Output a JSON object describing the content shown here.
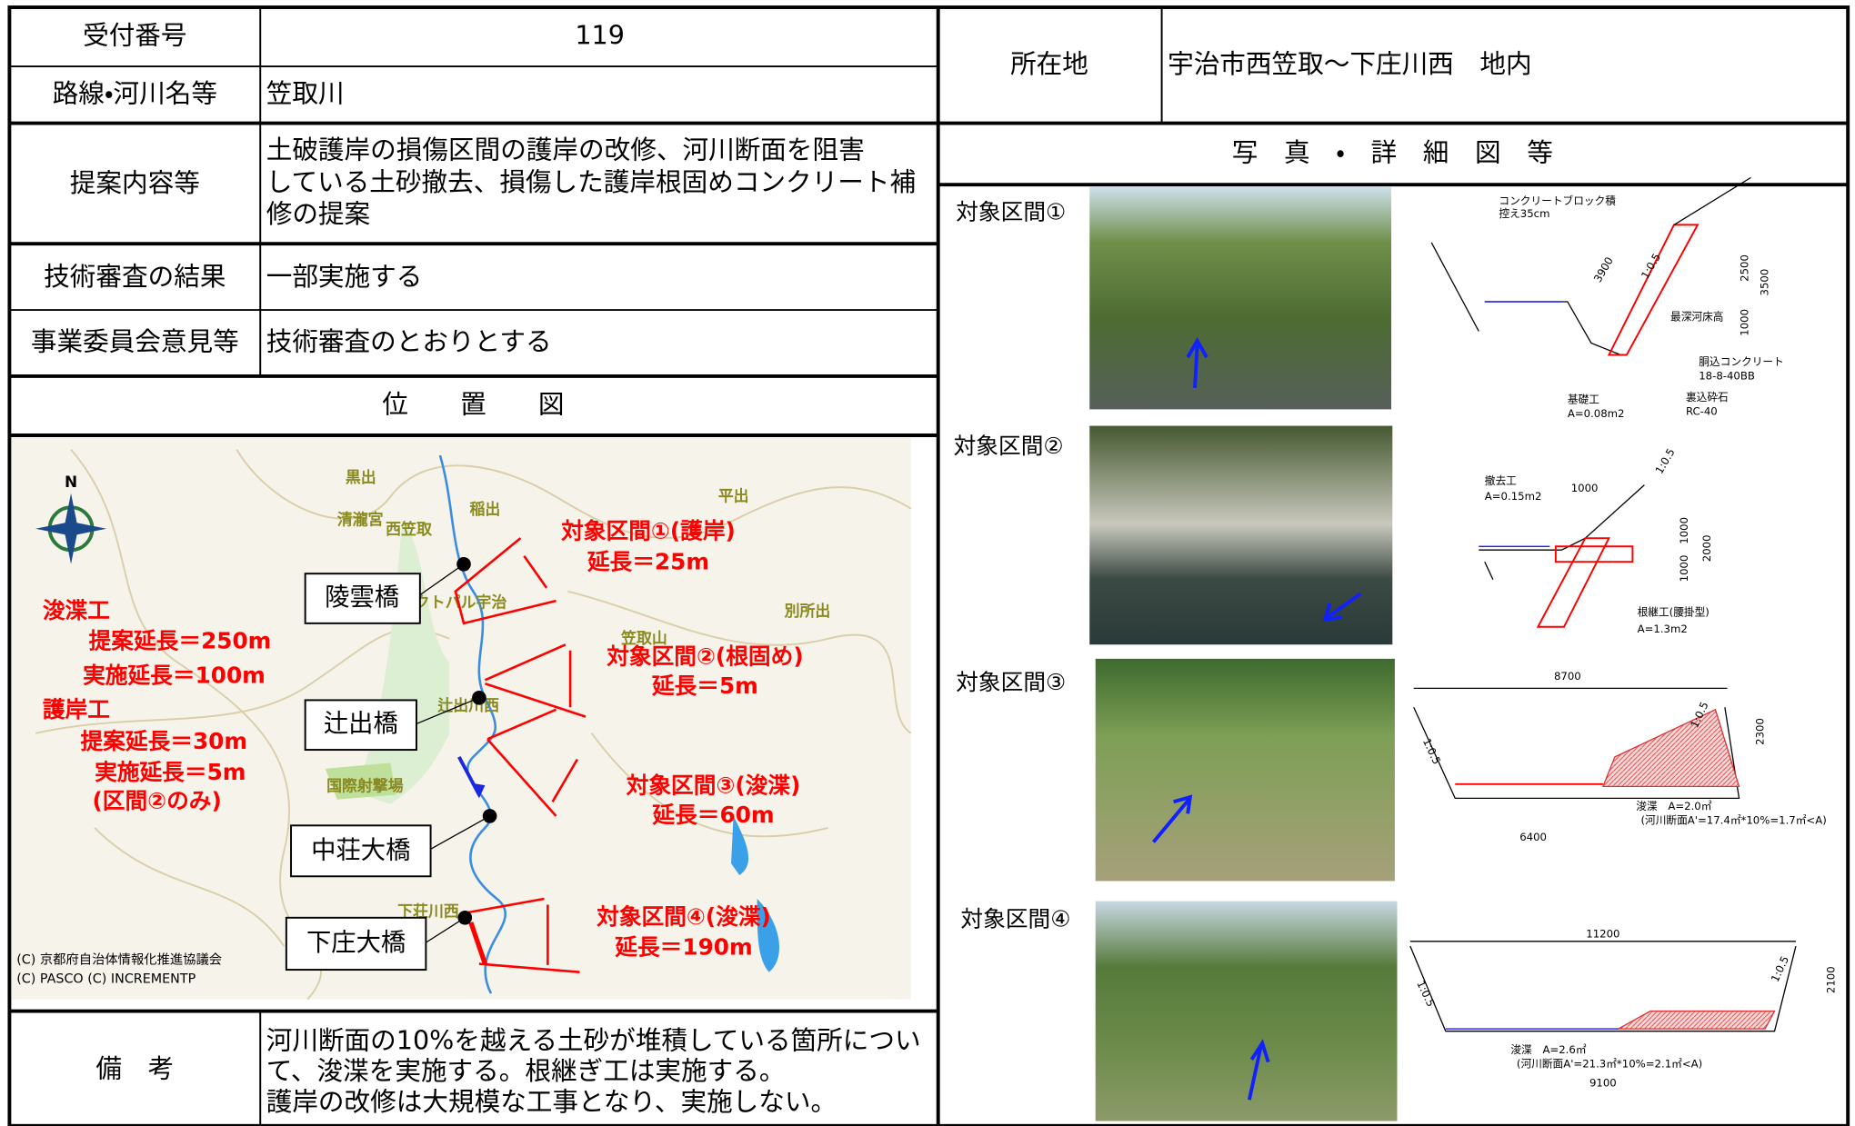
{
  "form": {
    "reception_number": {
      "label": "受付番号",
      "value": "119"
    },
    "route": {
      "label": "路線・河川名等",
      "value": "笠取川"
    },
    "location": {
      "label": "所在地",
      "value": "宇治市西笠取～下庄川西　地内"
    },
    "proposal": {
      "label": "提案内容等",
      "value_lines": [
        "土破護岸の損傷区間の護岸の改修、河川断面を阻害",
        "している土砂撤去、損傷した護岸根固めコンクリート補",
        "修の提案"
      ]
    },
    "review": {
      "label": "技術審査の結果",
      "value": "一部実施する"
    },
    "committee": {
      "label": "事業委員会意見等",
      "value": "技術審査のとおりとする"
    },
    "remarks": {
      "label": "備　考",
      "value_lines": [
        "河川断面の10%を越える土砂が堆積している箇所につい",
        "て、浚渫を実施する。根継ぎ工は実施する。",
        "護岸の改修は大規模な工事となり、実施しない。"
      ]
    }
  },
  "map": {
    "title": "位　　置　　図",
    "bridges": [
      "陵雲橋",
      "辻出橋",
      "中荘大橋",
      "下庄大橋"
    ],
    "sections": [
      {
        "name": "対象区間①(護岸)",
        "length": "延長＝25m"
      },
      {
        "name": "対象区間②(根固め)",
        "length": "延長＝5m"
      },
      {
        "name": "対象区間③(浚渫)",
        "length": "延長＝60m"
      },
      {
        "name": "対象区間④(浚渫)",
        "length": "延長＝190m"
      }
    ],
    "summary": [
      "浚渫工",
      "提案延長＝250m",
      "実施延長＝100m",
      "護岸工",
      "提案延長＝30m",
      "実施延長＝5m",
      "(区間②のみ)"
    ],
    "places": [
      "黒出",
      "稲出",
      "平出",
      "西笠取",
      "清瀧宮",
      "笠取山",
      "別所出",
      "辻出川西",
      "国際射撃場",
      "下荘川西",
      "アクトパル宇治"
    ],
    "compass": "N",
    "credit": [
      "(C) 京都府自治体情報化推進協議会",
      "(C) PASCO (C) INCREMENTP"
    ]
  },
  "details": {
    "title": "写　真　・　詳　細　図　等",
    "sections": [
      {
        "label": "対象区間①",
        "diagram_labels": [
          "コンクリートブロック積",
          "控え35cm",
          "3900",
          "1:0.5",
          "2500",
          "3500",
          "1000",
          "最深河床高",
          "胴込コンクリート",
          "18-8-40BB",
          "裏込砕石",
          "RC-40",
          "基礎工",
          "A=0.08m2"
        ]
      },
      {
        "label": "対象区間②",
        "diagram_labels": [
          "撤去工",
          "A=0.15m2",
          "1000",
          "1:0.5",
          "1000",
          "2000",
          "1000",
          "根継工(腰掛型)",
          "A=1.3m2"
        ]
      },
      {
        "label": "対象区間③",
        "diagram_labels": [
          "8700",
          "2300",
          "1:0.5",
          "1:0.5",
          "浚渫　A=2.0㎡",
          "(河川断面A'=17.4㎡*10%=1.7㎡<A)",
          "6400"
        ]
      },
      {
        "label": "対象区間④",
        "diagram_labels": [
          "11200",
          "2100",
          "1:0.5",
          "1:0.5",
          "浚渫　A=2.6㎡",
          "(河川断面A'=21.3㎡*10%=2.1㎡<A)",
          "9100"
        ]
      }
    ]
  }
}
